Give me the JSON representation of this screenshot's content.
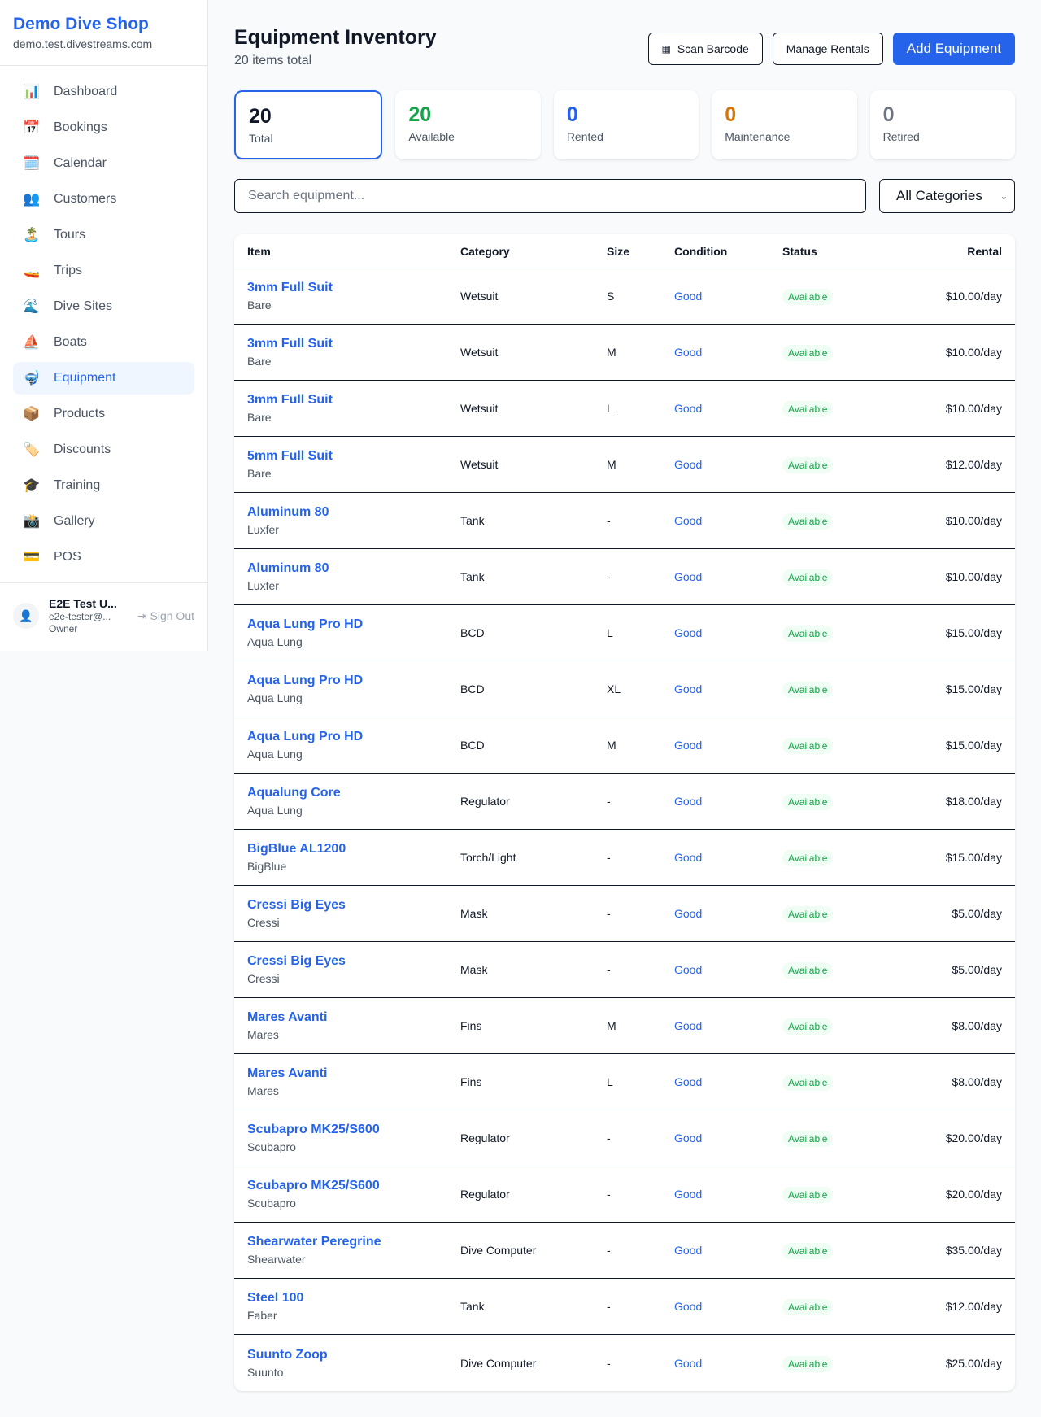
{
  "sidebar": {
    "brand": "Demo Dive Shop",
    "domain": "demo.test.divestreams.com",
    "items": [
      {
        "label": "Dashboard",
        "icon": "📊"
      },
      {
        "label": "Bookings",
        "icon": "📅"
      },
      {
        "label": "Calendar",
        "icon": "🗓️"
      },
      {
        "label": "Customers",
        "icon": "👥"
      },
      {
        "label": "Tours",
        "icon": "🏝️"
      },
      {
        "label": "Trips",
        "icon": "🚤"
      },
      {
        "label": "Dive Sites",
        "icon": "🌊"
      },
      {
        "label": "Boats",
        "icon": "⛵"
      },
      {
        "label": "Equipment",
        "icon": "🤿"
      },
      {
        "label": "Products",
        "icon": "📦"
      },
      {
        "label": "Discounts",
        "icon": "🏷️"
      },
      {
        "label": "Training",
        "icon": "🎓"
      },
      {
        "label": "Gallery",
        "icon": "📸"
      },
      {
        "label": "POS",
        "icon": "💳"
      }
    ],
    "active": "Equipment",
    "user": {
      "name": "E2E Test U...",
      "email": "e2e-tester@...",
      "role": "Owner",
      "sign_out": "Sign Out"
    }
  },
  "header": {
    "title": "Equipment Inventory",
    "subtitle": "20 items total",
    "scan": "Scan Barcode",
    "manage": "Manage Rentals",
    "add": "Add Equipment"
  },
  "stats": [
    {
      "value": "20",
      "label": "Total",
      "color": "#111827"
    },
    {
      "value": "20",
      "label": "Available",
      "color": "#16a34a"
    },
    {
      "value": "0",
      "label": "Rented",
      "color": "#2563eb"
    },
    {
      "value": "0",
      "label": "Maintenance",
      "color": "#d97706"
    },
    {
      "value": "0",
      "label": "Retired",
      "color": "#6b7280"
    }
  ],
  "filters": {
    "search_placeholder": "Search equipment...",
    "category": "All Categories"
  },
  "table": {
    "columns": [
      "Item",
      "Category",
      "Size",
      "Condition",
      "Status",
      "Rental"
    ],
    "rows": [
      [
        "3mm Full Suit",
        "Bare",
        "Wetsuit",
        "S",
        "Good",
        "Available",
        "$10.00/day"
      ],
      [
        "3mm Full Suit",
        "Bare",
        "Wetsuit",
        "M",
        "Good",
        "Available",
        "$10.00/day"
      ],
      [
        "3mm Full Suit",
        "Bare",
        "Wetsuit",
        "L",
        "Good",
        "Available",
        "$10.00/day"
      ],
      [
        "5mm Full Suit",
        "Bare",
        "Wetsuit",
        "M",
        "Good",
        "Available",
        "$12.00/day"
      ],
      [
        "Aluminum 80",
        "Luxfer",
        "Tank",
        "-",
        "Good",
        "Available",
        "$10.00/day"
      ],
      [
        "Aluminum 80",
        "Luxfer",
        "Tank",
        "-",
        "Good",
        "Available",
        "$10.00/day"
      ],
      [
        "Aqua Lung Pro HD",
        "Aqua Lung",
        "BCD",
        "L",
        "Good",
        "Available",
        "$15.00/day"
      ],
      [
        "Aqua Lung Pro HD",
        "Aqua Lung",
        "BCD",
        "XL",
        "Good",
        "Available",
        "$15.00/day"
      ],
      [
        "Aqua Lung Pro HD",
        "Aqua Lung",
        "BCD",
        "M",
        "Good",
        "Available",
        "$15.00/day"
      ],
      [
        "Aqualung Core",
        "Aqua Lung",
        "Regulator",
        "-",
        "Good",
        "Available",
        "$18.00/day"
      ],
      [
        "BigBlue AL1200",
        "BigBlue",
        "Torch/Light",
        "-",
        "Good",
        "Available",
        "$15.00/day"
      ],
      [
        "Cressi Big Eyes",
        "Cressi",
        "Mask",
        "-",
        "Good",
        "Available",
        "$5.00/day"
      ],
      [
        "Cressi Big Eyes",
        "Cressi",
        "Mask",
        "-",
        "Good",
        "Available",
        "$5.00/day"
      ],
      [
        "Mares Avanti",
        "Mares",
        "Fins",
        "M",
        "Good",
        "Available",
        "$8.00/day"
      ],
      [
        "Mares Avanti",
        "Mares",
        "Fins",
        "L",
        "Good",
        "Available",
        "$8.00/day"
      ],
      [
        "Scubapro MK25/S600",
        "Scubapro",
        "Regulator",
        "-",
        "Good",
        "Available",
        "$20.00/day"
      ],
      [
        "Scubapro MK25/S600",
        "Scubapro",
        "Regulator",
        "-",
        "Good",
        "Available",
        "$20.00/day"
      ],
      [
        "Shearwater Peregrine",
        "Shearwater",
        "Dive Computer",
        "-",
        "Good",
        "Available",
        "$35.00/day"
      ],
      [
        "Steel 100",
        "Faber",
        "Tank",
        "-",
        "Good",
        "Available",
        "$12.00/day"
      ],
      [
        "Suunto Zoop",
        "Suunto",
        "Dive Computer",
        "-",
        "Good",
        "Available",
        "$25.00/day"
      ]
    ]
  }
}
